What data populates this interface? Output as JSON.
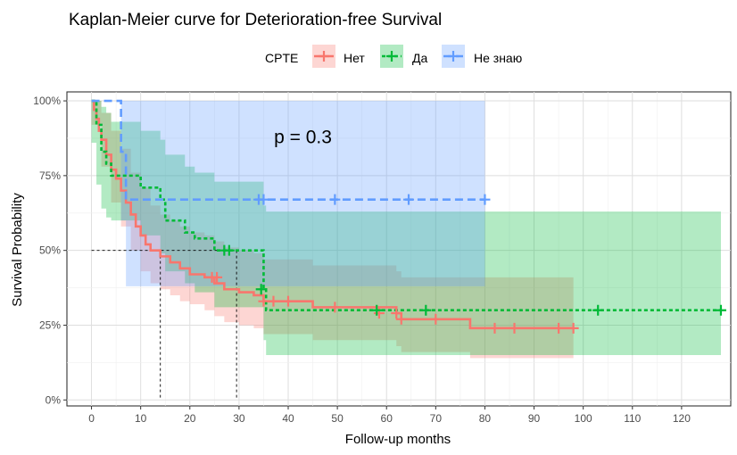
{
  "chart_data": {
    "type": "line",
    "subtype": "kaplan-meier",
    "title": "Kaplan-Meier curve for Deterioration-free Survival",
    "xlabel": "Follow-up months",
    "ylabel": "Survival Probability",
    "xlim": [
      -5,
      130
    ],
    "ylim": [
      -0.02,
      1.03
    ],
    "xticks": [
      0,
      10,
      20,
      30,
      40,
      50,
      60,
      70,
      80,
      90,
      100,
      110,
      120
    ],
    "xtick_labels": [
      "0",
      "10",
      "20",
      "30",
      "40",
      "50",
      "60",
      "70",
      "80",
      "90",
      "100",
      "110",
      "120"
    ],
    "yticks": [
      0,
      0.25,
      0.5,
      0.75,
      1.0
    ],
    "ytick_labels": [
      "0%",
      "25%",
      "50%",
      "75%",
      "100%"
    ],
    "grid": true,
    "legend_title": "CPTE",
    "legend_position": "top",
    "annotation": "p = 0.3",
    "annotation_position": {
      "x": 43,
      "y": 0.88
    },
    "median_lines": [
      {
        "x": 14.0,
        "y": 0.5
      },
      {
        "x": 29.5,
        "y": 0.5
      }
    ],
    "series": [
      {
        "name": "Нет",
        "color": "#F8766D",
        "line_style": "solid",
        "steps": [
          [
            0,
            1.0
          ],
          [
            0.5,
            0.97
          ],
          [
            1,
            0.94
          ],
          [
            1.5,
            0.9
          ],
          [
            2,
            0.87
          ],
          [
            3,
            0.82
          ],
          [
            4,
            0.77
          ],
          [
            5,
            0.74
          ],
          [
            6,
            0.7
          ],
          [
            7,
            0.66
          ],
          [
            8,
            0.62
          ],
          [
            9,
            0.58
          ],
          [
            10,
            0.55
          ],
          [
            11,
            0.52
          ],
          [
            12,
            0.5
          ],
          [
            14,
            0.48
          ],
          [
            16,
            0.46
          ],
          [
            18,
            0.44
          ],
          [
            20,
            0.42
          ],
          [
            23,
            0.41
          ],
          [
            25,
            0.39
          ],
          [
            27,
            0.37
          ],
          [
            30,
            0.36
          ],
          [
            33,
            0.35
          ],
          [
            35,
            0.33
          ],
          [
            45,
            0.31
          ],
          [
            62,
            0.29
          ],
          [
            63,
            0.27
          ],
          [
            77,
            0.24
          ],
          [
            98,
            0.24
          ]
        ],
        "lower": [
          [
            0,
            0.92
          ],
          [
            2,
            0.78
          ],
          [
            4,
            0.66
          ],
          [
            6,
            0.58
          ],
          [
            8,
            0.5
          ],
          [
            10,
            0.43
          ],
          [
            12,
            0.39
          ],
          [
            14,
            0.37
          ],
          [
            16,
            0.35
          ],
          [
            18,
            0.33
          ],
          [
            20,
            0.32
          ],
          [
            23,
            0.3
          ],
          [
            25,
            0.28
          ],
          [
            27,
            0.26
          ],
          [
            30,
            0.25
          ],
          [
            33,
            0.24
          ],
          [
            35,
            0.22
          ],
          [
            45,
            0.2
          ],
          [
            62,
            0.18
          ],
          [
            63,
            0.16
          ],
          [
            77,
            0.14
          ],
          [
            98,
            0.14
          ]
        ],
        "upper": [
          [
            0,
            1.0
          ],
          [
            2,
            0.96
          ],
          [
            4,
            0.9
          ],
          [
            6,
            0.84
          ],
          [
            8,
            0.76
          ],
          [
            10,
            0.71
          ],
          [
            12,
            0.65
          ],
          [
            14,
            0.62
          ],
          [
            16,
            0.6
          ],
          [
            18,
            0.58
          ],
          [
            20,
            0.56
          ],
          [
            23,
            0.55
          ],
          [
            25,
            0.53
          ],
          [
            27,
            0.51
          ],
          [
            30,
            0.5
          ],
          [
            33,
            0.49
          ],
          [
            35,
            0.47
          ],
          [
            45,
            0.45
          ],
          [
            62,
            0.43
          ],
          [
            63,
            0.41
          ],
          [
            77,
            0.41
          ],
          [
            98,
            0.41
          ]
        ],
        "censors": [
          [
            24.5,
            0.41
          ],
          [
            25.5,
            0.41
          ],
          [
            35,
            0.33
          ],
          [
            37,
            0.33
          ],
          [
            40,
            0.33
          ],
          [
            49.5,
            0.31
          ],
          [
            58.5,
            0.29
          ],
          [
            62,
            0.29
          ],
          [
            63,
            0.27
          ],
          [
            70,
            0.27
          ],
          [
            82,
            0.24
          ],
          [
            86,
            0.24
          ],
          [
            95,
            0.24
          ],
          [
            98,
            0.24
          ]
        ]
      },
      {
        "name": "Да",
        "color": "#00BA38",
        "line_style": "dotted",
        "steps": [
          [
            0,
            1.0
          ],
          [
            1,
            0.92
          ],
          [
            2,
            0.83
          ],
          [
            3,
            0.79
          ],
          [
            4,
            0.75
          ],
          [
            7,
            0.75
          ],
          [
            10,
            0.71
          ],
          [
            13,
            0.71
          ],
          [
            14,
            0.67
          ],
          [
            15,
            0.6
          ],
          [
            19,
            0.56
          ],
          [
            21,
            0.54
          ],
          [
            25,
            0.5
          ],
          [
            34,
            0.5
          ],
          [
            35,
            0.37
          ],
          [
            35.5,
            0.3
          ],
          [
            128,
            0.3
          ]
        ],
        "lower": [
          [
            0,
            0.86
          ],
          [
            1,
            0.72
          ],
          [
            2,
            0.64
          ],
          [
            3,
            0.61
          ],
          [
            4,
            0.6
          ],
          [
            7,
            0.6
          ],
          [
            10,
            0.55
          ],
          [
            13,
            0.55
          ],
          [
            14,
            0.49
          ],
          [
            15,
            0.43
          ],
          [
            19,
            0.39
          ],
          [
            21,
            0.36
          ],
          [
            25,
            0.31
          ],
          [
            34,
            0.31
          ],
          [
            35,
            0.2
          ],
          [
            35.5,
            0.15
          ],
          [
            128,
            0.15
          ]
        ],
        "upper": [
          [
            0,
            1.0
          ],
          [
            1,
            1.0
          ],
          [
            2,
            0.98
          ],
          [
            3,
            0.96
          ],
          [
            4,
            0.93
          ],
          [
            7,
            0.93
          ],
          [
            10,
            0.9
          ],
          [
            13,
            0.9
          ],
          [
            14,
            0.87
          ],
          [
            15,
            0.82
          ],
          [
            19,
            0.78
          ],
          [
            21,
            0.76
          ],
          [
            25,
            0.73
          ],
          [
            34,
            0.73
          ],
          [
            35,
            0.65
          ],
          [
            35.5,
            0.63
          ],
          [
            128,
            0.63
          ]
        ],
        "censors": [
          [
            27,
            0.5
          ],
          [
            28,
            0.5
          ],
          [
            34.5,
            0.37
          ],
          [
            58,
            0.3
          ],
          [
            68,
            0.3
          ],
          [
            103,
            0.3
          ],
          [
            128,
            0.3
          ]
        ]
      },
      {
        "name": "Не знаю",
        "color": "#619CFF",
        "line_style": "dashed",
        "steps": [
          [
            0,
            1.0
          ],
          [
            6,
            0.83
          ],
          [
            7,
            0.67
          ],
          [
            80,
            0.67
          ]
        ],
        "lower": [
          [
            0,
            1.0
          ],
          [
            6,
            0.6
          ],
          [
            7,
            0.38
          ],
          [
            80,
            0.38
          ]
        ],
        "upper": [
          [
            0,
            1.0
          ],
          [
            80,
            1.0
          ]
        ],
        "censors": [
          [
            34,
            0.67
          ],
          [
            35,
            0.67
          ],
          [
            49.5,
            0.67
          ],
          [
            64.5,
            0.67
          ],
          [
            80,
            0.67
          ]
        ]
      }
    ]
  }
}
